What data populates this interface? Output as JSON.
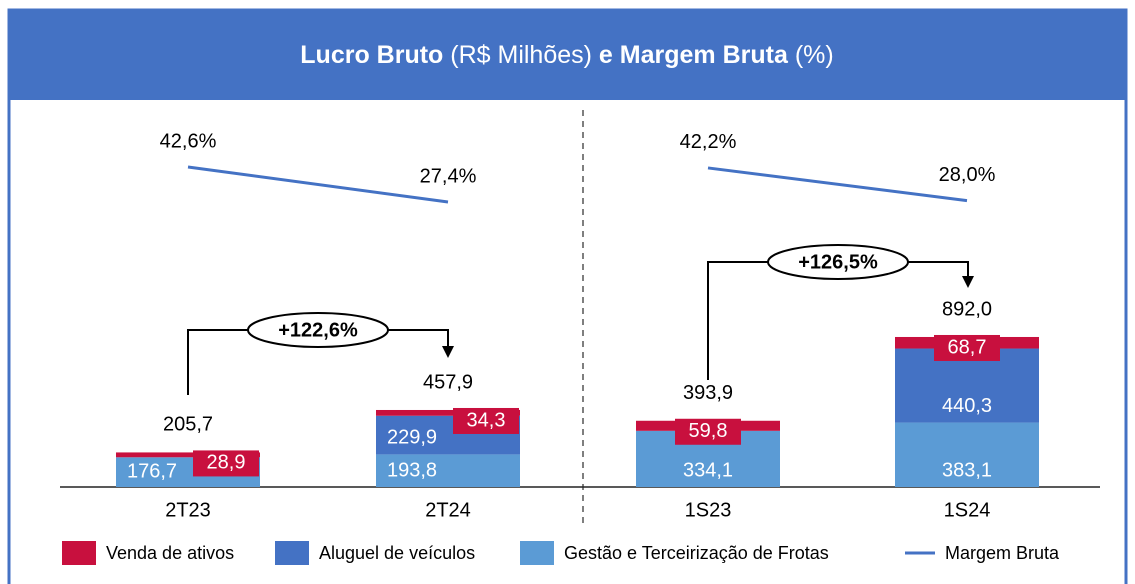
{
  "chart_data": {
    "type": "bar",
    "stacked": true,
    "title_parts": [
      {
        "text": "Lucro Bruto",
        "bold": true
      },
      {
        "text": " (R$ Milhões) ",
        "bold": false
      },
      {
        "text": "e Margem Bruta",
        "bold": true
      },
      {
        "text": " (%)",
        "bold": false
      }
    ],
    "categories": [
      "2T23",
      "2T24",
      "1S23",
      "1S24"
    ],
    "series": [
      {
        "name": "Venda de ativos",
        "color": "#c8103e",
        "values": [
          28.9,
          34.3,
          59.8,
          68.7
        ],
        "value_labels": [
          "28,9",
          "34,3",
          "59,8",
          "68,7"
        ]
      },
      {
        "name": "Aluguel de veículos",
        "color": "#4472c4",
        "values": [
          null,
          229.9,
          null,
          440.3
        ],
        "value_labels": [
          null,
          "229,9",
          null,
          "440,3"
        ]
      },
      {
        "name": "Gestão e Terceirização de Frotas",
        "color": "#5b9bd5",
        "values": [
          176.7,
          193.8,
          334.1,
          383.1
        ],
        "value_labels": [
          "176,7",
          "193,8",
          "334,1",
          "383,1"
        ]
      }
    ],
    "totals": [
      205.7,
      457.9,
      393.9,
      892.0
    ],
    "total_labels": [
      "205,7",
      "457,9",
      "393,9",
      "892,0"
    ],
    "line": {
      "name": "Margem Bruta",
      "color": "#4472c4",
      "values": [
        42.6,
        27.4,
        42.2,
        28.0
      ],
      "value_labels": [
        "42,6%",
        "27,4%",
        "42,2%",
        "28,0%"
      ]
    },
    "annotations": [
      "+122,6%",
      "+126,5%"
    ]
  }
}
